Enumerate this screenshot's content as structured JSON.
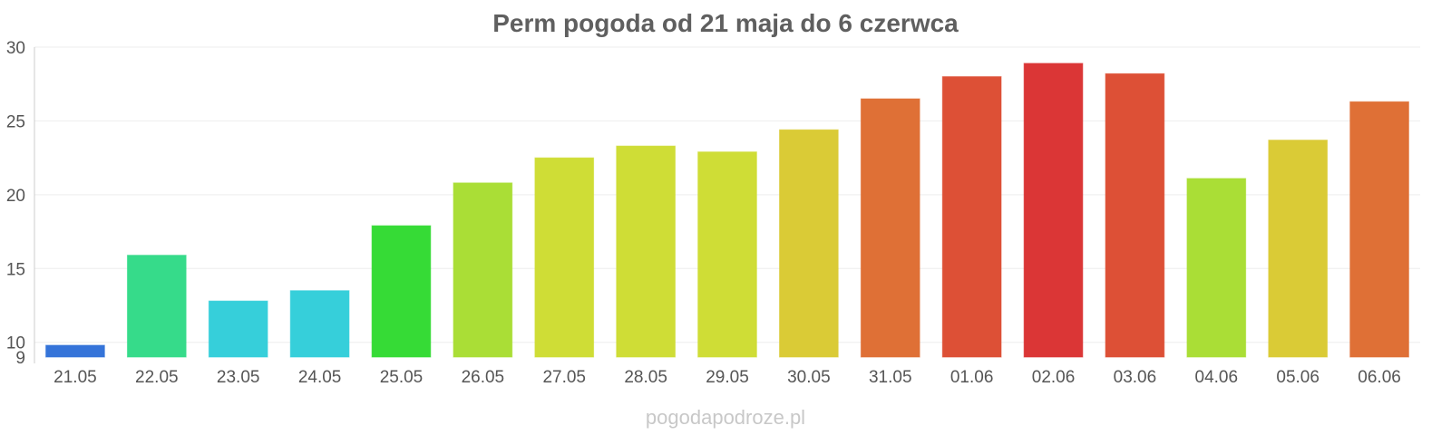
{
  "chart_data": {
    "type": "bar",
    "title": "Perm pogoda od 21 maja do 6 czerwca",
    "categories": [
      "21.05",
      "22.05",
      "23.05",
      "24.05",
      "25.05",
      "26.05",
      "27.05",
      "28.05",
      "29.05",
      "30.05",
      "31.05",
      "01.06",
      "02.06",
      "03.06",
      "04.06",
      "05.06",
      "06.06"
    ],
    "values": [
      9.8,
      15.9,
      12.8,
      13.5,
      17.9,
      20.8,
      22.5,
      23.3,
      22.9,
      24.4,
      26.5,
      28.0,
      28.9,
      28.2,
      21.1,
      23.7,
      26.3
    ],
    "colors": [
      "#3574d9",
      "#36db8a",
      "#36cfda",
      "#36cfda",
      "#36db36",
      "#aade36",
      "#cfdd36",
      "#cfdd36",
      "#cfdd36",
      "#dacb36",
      "#df7036",
      "#dd5036",
      "#db3636",
      "#dd5036",
      "#aade36",
      "#dacb36",
      "#df7036"
    ],
    "y_ticks": [
      9,
      10,
      15,
      20,
      25,
      30
    ],
    "ylim": [
      9,
      30
    ],
    "grid": true
  },
  "watermark": "pogodapodroze.pl"
}
